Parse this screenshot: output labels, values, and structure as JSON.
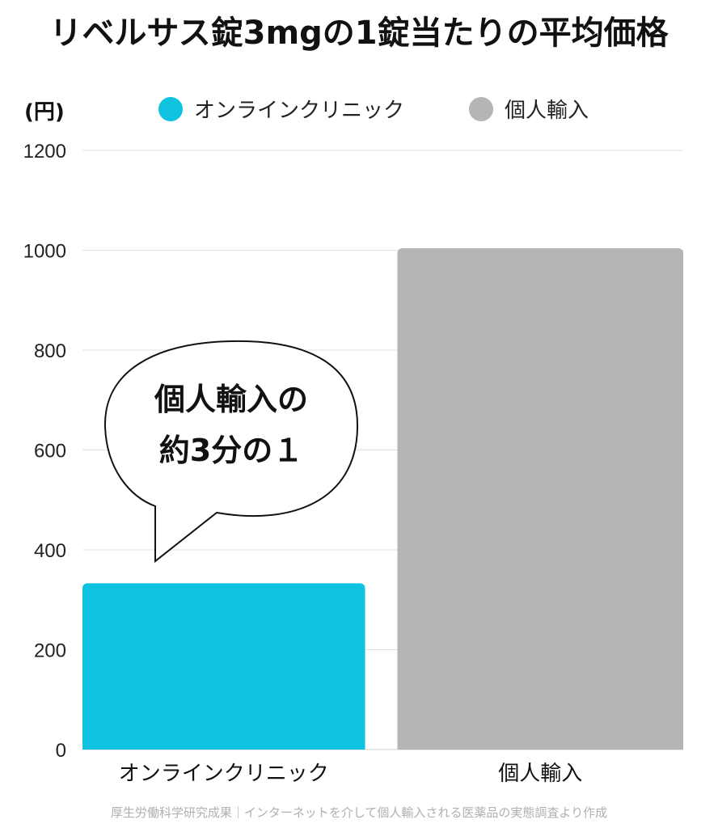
{
  "title": "リベルサス錠3mgの1錠当たりの平均価格",
  "unit_label": "(円)",
  "source": "厚生労働科学研究成果｜インターネットを介して個人輸入される医薬品の実態調査より作成",
  "annotation": {
    "line1": "個人輸入の",
    "line2": "約3分の１"
  },
  "chart_data": {
    "type": "bar",
    "categories": [
      "オンラインクリニック",
      "個人輸入"
    ],
    "series": [
      {
        "name": "オンラインクリニック",
        "color": "#0ec2e0",
        "values": [
          333,
          null
        ]
      },
      {
        "name": "個人輸入",
        "color": "#b5b5b5",
        "values": [
          null,
          1004
        ]
      }
    ],
    "values": [
      333,
      1004
    ],
    "colors": [
      "#0ec2e0",
      "#b5b5b5"
    ],
    "ylim": [
      0,
      1200
    ],
    "yticks": [
      0,
      200,
      400,
      600,
      800,
      1000,
      1200
    ],
    "ylabel": "(円)",
    "xlabel": "",
    "grid": true,
    "legend_position": "top"
  }
}
